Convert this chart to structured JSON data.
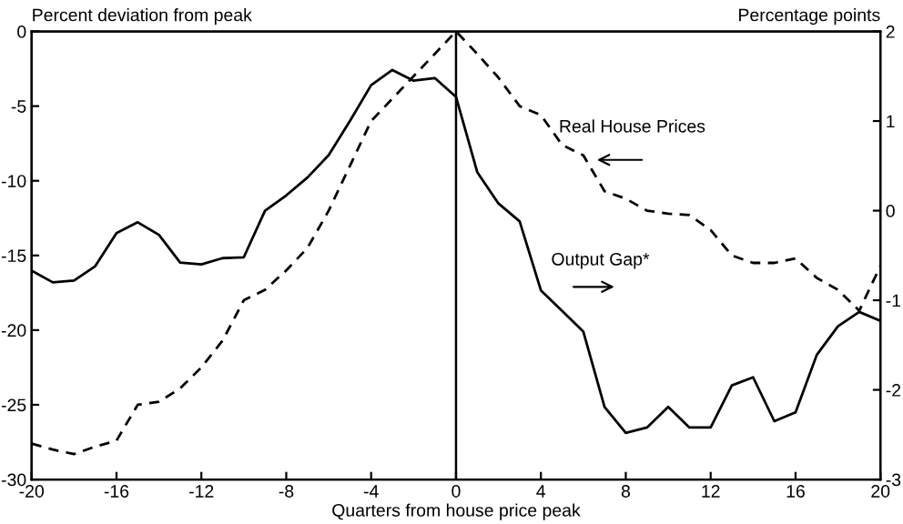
{
  "chart_data": {
    "type": "line",
    "x": [
      -20,
      -19,
      -18,
      -17,
      -16,
      -15,
      -14,
      -13,
      -12,
      -11,
      -10,
      -9,
      -8,
      -7,
      -6,
      -5,
      -4,
      -3,
      -2,
      -1,
      0,
      1,
      2,
      3,
      4,
      5,
      6,
      7,
      8,
      9,
      10,
      11,
      12,
      13,
      14,
      15,
      16,
      17,
      18,
      19,
      20
    ],
    "series": [
      {
        "name": "Real House Prices",
        "color": "#000000",
        "line_style": "dashed",
        "values": [
          -27.6,
          -28.0,
          -28.3,
          -27.8,
          -27.4,
          -25.0,
          -24.8,
          -23.9,
          -22.5,
          -20.7,
          -18.0,
          -17.3,
          -16.0,
          -14.5,
          -12.0,
          -9.0,
          -6.0,
          -4.5,
          -3.0,
          -1.5,
          0.0,
          -1.5,
          -3.1,
          -5.0,
          -5.6,
          -7.6,
          -8.3,
          -10.7,
          -11.2,
          -12.0,
          -12.2,
          -12.3,
          -13.3,
          -15.0,
          -15.5,
          -15.5,
          -15.2,
          -16.5,
          -17.3,
          -18.7,
          -15.7
        ]
      },
      {
        "name": "Output Gap*",
        "color": "#000000",
        "line_style": "solid",
        "axis": "y2",
        "values": [
          -0.67,
          -0.8,
          -0.78,
          -0.62,
          -0.25,
          -0.13,
          -0.27,
          -0.58,
          -0.6,
          -0.53,
          -0.52,
          0.0,
          0.17,
          0.37,
          0.62,
          1.0,
          1.4,
          1.57,
          1.45,
          1.48,
          1.27,
          0.43,
          0.08,
          -0.12,
          -0.89,
          -1.12,
          -1.35,
          -2.19,
          -2.48,
          -2.42,
          -2.19,
          -2.42,
          -2.42,
          -1.95,
          -1.86,
          -2.35,
          -2.25,
          -1.61,
          -1.29,
          -1.13,
          -1.23
        ]
      }
    ],
    "xlabel": "Quarters from house price peak",
    "ylabel": "Percent deviation from peak",
    "y2label": "Percentage points",
    "xlim": [
      -20,
      20
    ],
    "xticks": [
      -20,
      -16,
      -12,
      -8,
      -4,
      0,
      4,
      8,
      12,
      16,
      20
    ],
    "ylim": [
      -30,
      0
    ],
    "yticks": [
      -30,
      -25,
      -20,
      -15,
      -10,
      -5,
      0
    ],
    "y2lim": [
      -3,
      2
    ],
    "y2ticks": [
      -3,
      -2,
      -1,
      0,
      1,
      2
    ],
    "ref_lines": [
      {
        "axis": "x",
        "value": 0,
        "color": "#000000",
        "line_style": "solid"
      }
    ],
    "grid": false,
    "legend": false
  }
}
